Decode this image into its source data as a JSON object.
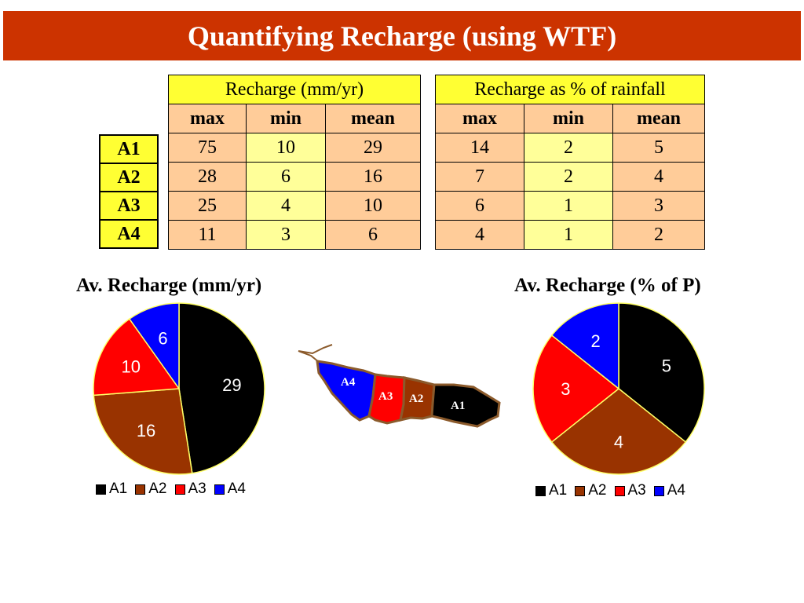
{
  "title": "Quantifying Recharge (using WTF)",
  "table_left": {
    "header": "Recharge (mm/yr)",
    "columns": [
      "max",
      "min",
      "mean"
    ],
    "rows": [
      [
        "75",
        "10",
        "29"
      ],
      [
        "28",
        "6",
        "16"
      ],
      [
        "25",
        "4",
        "10"
      ],
      [
        "11",
        "3",
        "6"
      ]
    ]
  },
  "table_right": {
    "header": "Recharge as % of rainfall",
    "columns": [
      "max",
      "min",
      "mean"
    ],
    "rows": [
      [
        "14",
        "2",
        "5"
      ],
      [
        "7",
        "2",
        "4"
      ],
      [
        "6",
        "1",
        "3"
      ],
      [
        "4",
        "1",
        "2"
      ]
    ]
  },
  "row_labels": [
    "A1",
    "A2",
    "A3",
    "A4"
  ],
  "map_labels": [
    "A4",
    "A3",
    "A2",
    "A1"
  ],
  "colors": {
    "A1": "#000000",
    "A2": "#993300",
    "A3": "#ff0000",
    "A4": "#0000ff",
    "title_bg": "#cc3300"
  },
  "chart_data": [
    {
      "type": "pie",
      "title": "Av. Recharge (mm/yr)",
      "categories": [
        "A1",
        "A2",
        "A3",
        "A4"
      ],
      "values": [
        29,
        16,
        10,
        6
      ],
      "legend": "bottom"
    },
    {
      "type": "pie",
      "title": "Av. Recharge (% of P)",
      "categories": [
        "A1",
        "A2",
        "A3",
        "A4"
      ],
      "values": [
        5,
        4,
        3,
        2
      ],
      "legend": "bottom"
    }
  ]
}
